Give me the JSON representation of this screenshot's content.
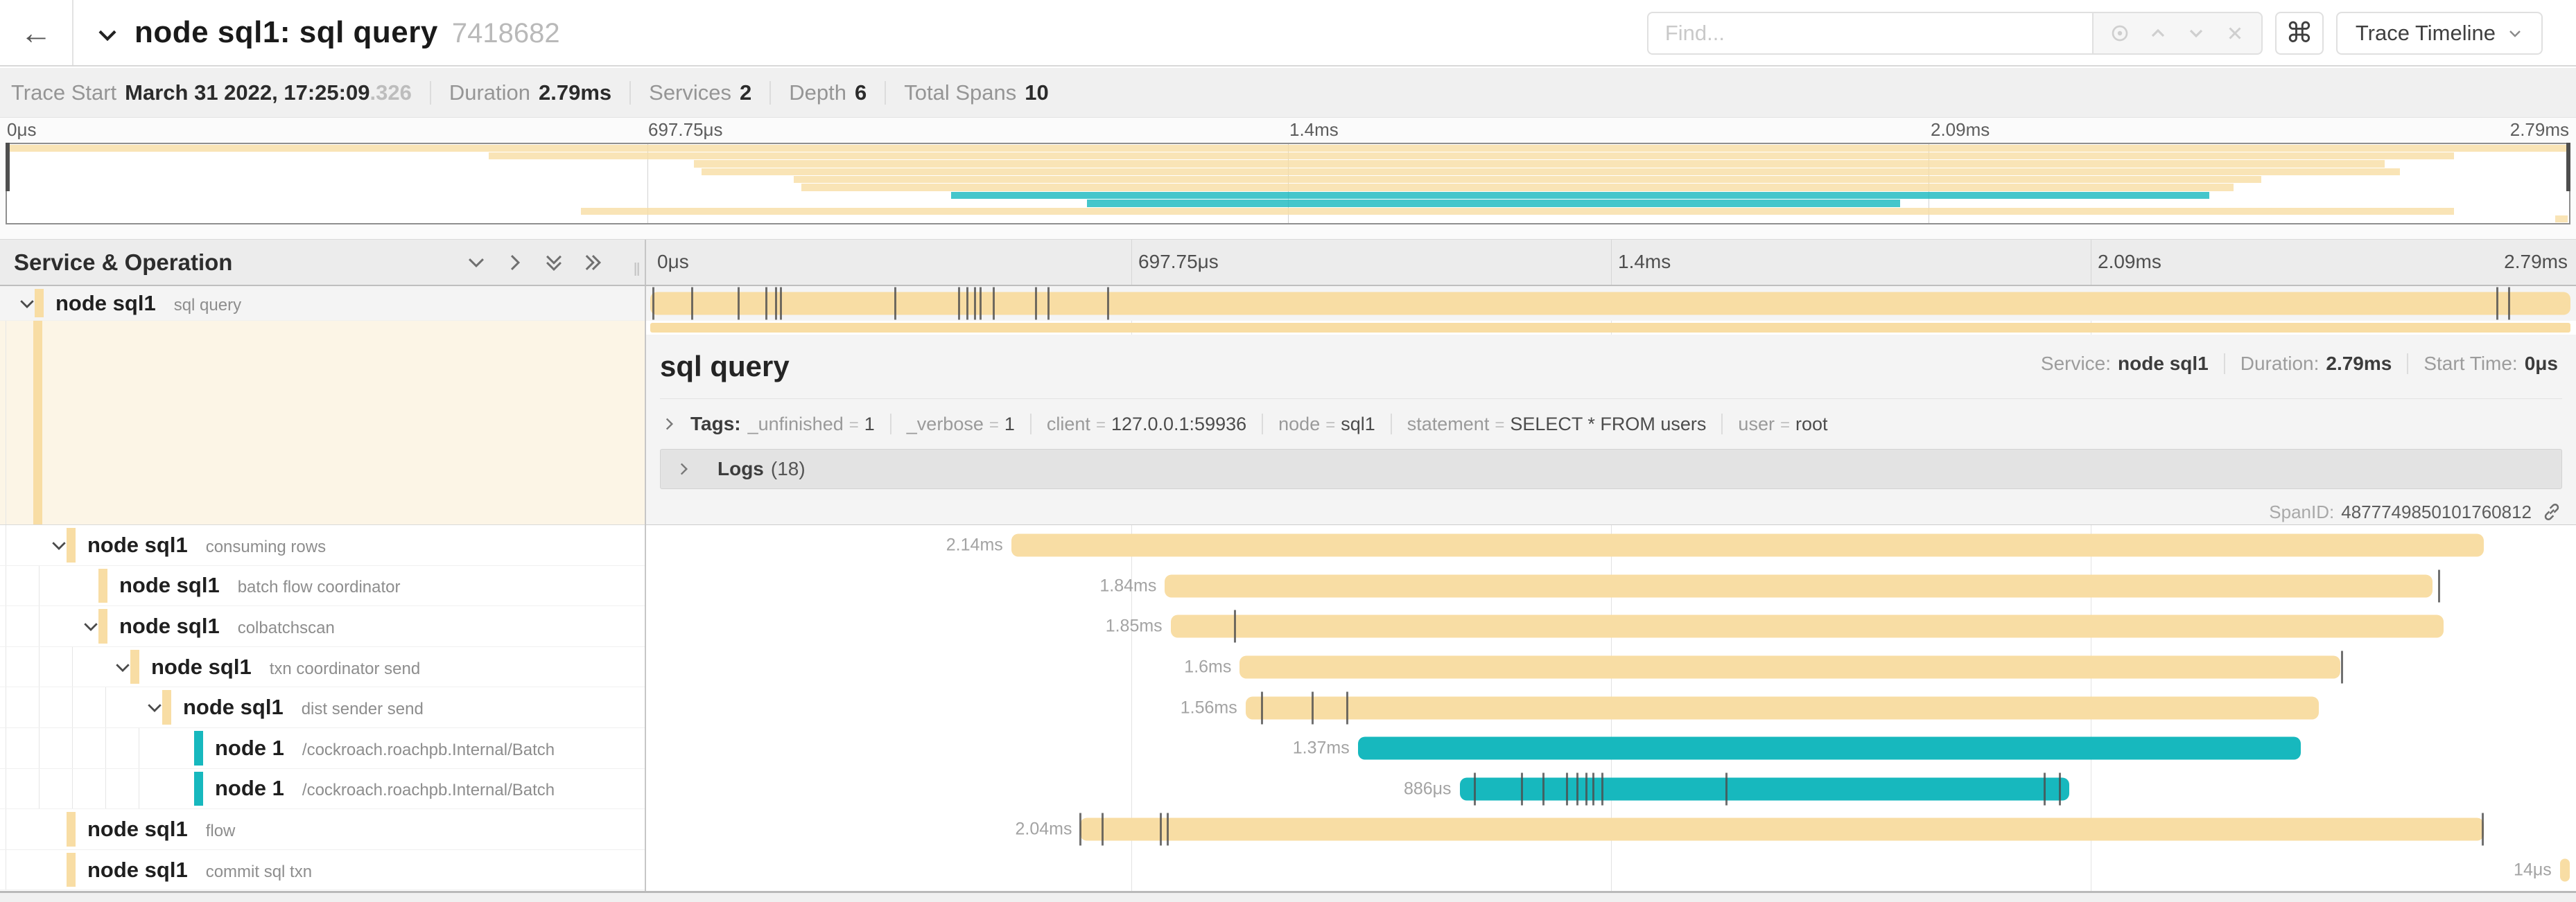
{
  "header": {
    "title": "node sql1: sql query",
    "trace_id": "7418682",
    "find_placeholder": "Find...",
    "view_selector_label": "Trace Timeline"
  },
  "trace_info": {
    "trace_start_label": "Trace Start",
    "trace_start_value": "March 31 2022, 17:25:09",
    "trace_start_fraction": ".326",
    "duration_label": "Duration",
    "duration_value": "2.79ms",
    "services_label": "Services",
    "services_value": "2",
    "depth_label": "Depth",
    "depth_value": "6",
    "total_spans_label": "Total Spans",
    "total_spans_value": "10"
  },
  "ruler_labels": [
    "0μs",
    "697.75μs",
    "1.4ms",
    "2.09ms",
    "2.79ms"
  ],
  "table_header": {
    "title": "Service & Operation"
  },
  "colors": {
    "tan": "#F8DDA4",
    "teal": "#17B8BE"
  },
  "spans": [
    {
      "service": "node sql1",
      "operation": "sql query",
      "depth": 0,
      "color": "tan",
      "start": 0.0,
      "width": 1.0,
      "duration_label": "",
      "expander": true,
      "selected": true,
      "ticks": [
        0.0015,
        0.022,
        0.046,
        0.0605,
        0.0655,
        0.068,
        0.1275,
        0.161,
        0.165,
        0.169,
        0.172,
        0.179,
        0.201,
        0.2075,
        0.2385,
        0.962,
        0.968
      ]
    },
    {
      "service": "node sql1",
      "operation": "consuming rows",
      "depth": 1,
      "color": "tan",
      "start": 0.188,
      "width": 0.767,
      "duration_label": "2.14ms",
      "expander": true,
      "selected": false,
      "ticks": []
    },
    {
      "service": "node sql1",
      "operation": "batch flow coordinator",
      "depth": 2,
      "color": "tan",
      "start": 0.268,
      "width": 0.66,
      "duration_label": "1.84ms",
      "expander": false,
      "selected": false,
      "ticks": [
        0.9315
      ]
    },
    {
      "service": "node sql1",
      "operation": "colbatchscan",
      "depth": 2,
      "color": "tan",
      "start": 0.271,
      "width": 0.663,
      "duration_label": "1.85ms",
      "expander": true,
      "selected": false,
      "ticks": [
        0.3045
      ]
    },
    {
      "service": "node sql1",
      "operation": "txn coordinator send",
      "depth": 3,
      "color": "tan",
      "start": 0.307,
      "width": 0.573,
      "duration_label": "1.6ms",
      "expander": true,
      "selected": false,
      "ticks": [
        0.881
      ]
    },
    {
      "service": "node sql1",
      "operation": "dist sender send",
      "depth": 4,
      "color": "tan",
      "start": 0.31,
      "width": 0.559,
      "duration_label": "1.56ms",
      "expander": true,
      "selected": false,
      "ticks": [
        0.3185,
        0.345,
        0.363
      ]
    },
    {
      "service": "node 1",
      "operation": "/cockroach.roachpb.Internal/Batch",
      "depth": 5,
      "color": "teal",
      "start": 0.3685,
      "width": 0.491,
      "duration_label": "1.37ms",
      "expander": false,
      "selected": false,
      "ticks": []
    },
    {
      "service": "node 1",
      "operation": "/cockroach.roachpb.Internal/Batch",
      "depth": 5,
      "color": "teal",
      "start": 0.4215,
      "width": 0.3175,
      "duration_label": "886μs",
      "expander": false,
      "selected": false,
      "ticks": [
        0.4295,
        0.454,
        0.465,
        0.4775,
        0.483,
        0.4875,
        0.491,
        0.496,
        0.5605,
        0.726,
        0.734
      ]
    },
    {
      "service": "node sql1",
      "operation": "flow",
      "depth": 1,
      "color": "tan",
      "start": 0.224,
      "width": 0.731,
      "duration_label": "2.04ms",
      "expander": false,
      "selected": false,
      "ticks": [
        0.224,
        0.2355,
        0.266,
        0.2695,
        0.9545
      ]
    },
    {
      "service": "node sql1",
      "operation": "commit sql txn",
      "depth": 1,
      "color": "tan",
      "start": 0.9945,
      "width": 0.005,
      "duration_label": "14μs",
      "expander": false,
      "selected": false,
      "ticks": []
    }
  ],
  "detail": {
    "title": "sql query",
    "service_label": "Service:",
    "service_value": "node sql1",
    "duration_label": "Duration:",
    "duration_value": "2.79ms",
    "start_label": "Start Time:",
    "start_value": "0μs",
    "tags_label": "Tags:",
    "tags": [
      {
        "key": "_unfinished",
        "value": "1"
      },
      {
        "key": "_verbose",
        "value": "1"
      },
      {
        "key": "client",
        "value": "127.0.0.1:59936"
      },
      {
        "key": "node",
        "value": "sql1"
      },
      {
        "key": "statement",
        "value": "SELECT * FROM users"
      },
      {
        "key": "user",
        "value": "root"
      }
    ],
    "logs_label": "Logs",
    "logs_count": "(18)",
    "spanid_label": "SpanID:",
    "spanid_value": "4877749850101760812"
  }
}
